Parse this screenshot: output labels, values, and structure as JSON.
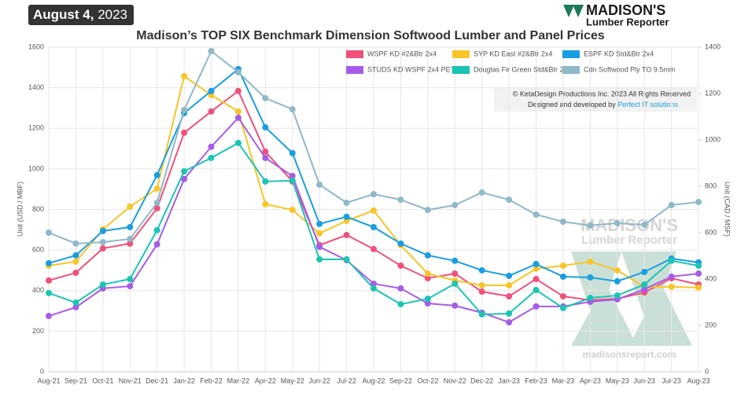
{
  "date_badge": {
    "bold": "August 4,",
    "light": "2023"
  },
  "logo": {
    "line1": "MADISON'S",
    "line2": "Lumber Reporter"
  },
  "credits": {
    "line1": "© KetaDesign Productions Inc. 2023 All Rights Reserved",
    "line2": "Designed and developed by",
    "link": "Perfect IT solutions"
  },
  "watermark": {
    "line1": "MADISON'S",
    "line2": "Lumber Reporter",
    "url": "madisonsreport.com"
  },
  "chart_data": {
    "type": "line",
    "title": "Madison’s TOP SIX Benchmark Dimension Softwood Lumber and Panel Prices",
    "y_label": "Unit (USD / MBF)",
    "y2_label": "Unit (CAD / MSF)",
    "categories": [
      "Aug-21",
      "Sep-21",
      "Oct-21",
      "Nov-21",
      "Dec-21",
      "Jan-22",
      "Feb-22",
      "Mar-22",
      "Apr-22",
      "May-22",
      "Jun-22",
      "Jul-22",
      "Aug-22",
      "Sep-22",
      "Oct-22",
      "Nov-22",
      "Dec-22",
      "Jan-23",
      "Feb-23",
      "Mar-23",
      "Apr-23",
      "May-23",
      "Jun-23",
      "Jul-23",
      "Aug-23"
    ],
    "ylim": [
      0,
      1600
    ],
    "yticks": [
      0,
      200,
      400,
      600,
      800,
      1000,
      1200,
      1400,
      1600
    ],
    "y2lim": [
      0,
      1400
    ],
    "y2ticks": [
      0,
      200,
      400,
      600,
      800,
      1000,
      1200,
      1400
    ],
    "grid": true,
    "series": [
      {
        "name": "WSPF KD #2&Btr 2x4",
        "color": "#f0507a",
        "values": [
          450,
          488,
          608,
          632,
          806,
          1178,
          1283,
          1384,
          1085,
          938,
          624,
          674,
          605,
          523,
          461,
          484,
          395,
          372,
          457,
          372,
          353,
          360,
          391,
          461,
          430
        ]
      },
      {
        "name": "SYP KD East #2&Btr 2x4",
        "color": "#f7c528",
        "values": [
          523,
          543,
          702,
          814,
          903,
          1457,
          1364,
          1283,
          826,
          798,
          682,
          744,
          795,
          624,
          484,
          450,
          426,
          426,
          508,
          523,
          543,
          500,
          419,
          419,
          415
        ]
      },
      {
        "name": "ESPF KD Std&Btr 2x4",
        "color": "#1a9ee0",
        "values": [
          535,
          574,
          694,
          713,
          969,
          1275,
          1384,
          1492,
          1205,
          1078,
          729,
          764,
          713,
          632,
          574,
          547,
          500,
          473,
          531,
          469,
          465,
          446,
          492,
          558,
          539
        ]
      },
      {
        "name": "STUDS KD WSPF 2x4 PET",
        "color": "#a65ce8",
        "values": [
          275,
          318,
          411,
          422,
          628,
          950,
          1109,
          1252,
          1054,
          965,
          616,
          550,
          434,
          411,
          337,
          326,
          291,
          244,
          322,
          322,
          345,
          357,
          407,
          469,
          484
        ]
      },
      {
        "name": "Douglas Fir Green Std&Btr 2x4",
        "color": "#1cc4b4",
        "values": [
          388,
          341,
          430,
          457,
          698,
          988,
          1054,
          1128,
          938,
          942,
          554,
          554,
          411,
          333,
          360,
          434,
          283,
          287,
          403,
          314,
          364,
          376,
          430,
          547,
          523
        ]
      },
      {
        "name": "Cdn Softwood Ply TO 9.5mm",
        "color": "#8fb8c8",
        "axis": "y2",
        "values": [
          600,
          553,
          559,
          573,
          729,
          1129,
          1383,
          1292,
          1180,
          1132,
          807,
          729,
          766,
          742,
          698,
          719,
          773,
          742,
          678,
          647,
          631,
          641,
          634,
          719,
          732
        ]
      }
    ]
  }
}
